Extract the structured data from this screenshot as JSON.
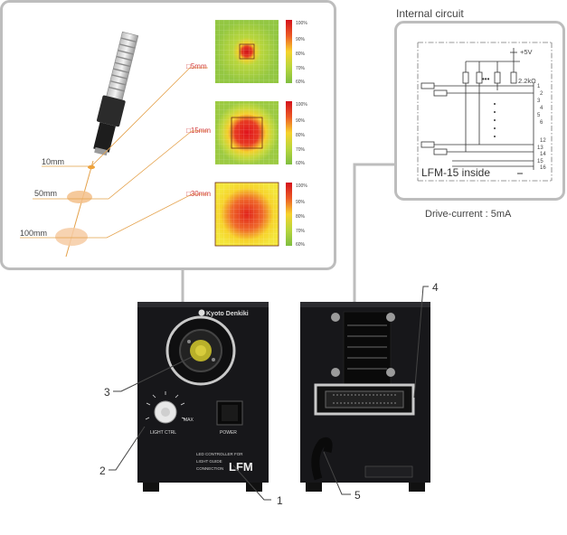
{
  "callout": {
    "distances": [
      "10mm",
      "50mm",
      "100mm"
    ],
    "spots": [
      {
        "label": "□5mm"
      },
      {
        "label": "□15mm"
      },
      {
        "label": "□30mm"
      }
    ],
    "scale_ticks": [
      "100%",
      "90%",
      "80%",
      "70%",
      "60%"
    ]
  },
  "circuit": {
    "title": "Internal circuit",
    "supply": "+5V",
    "resistor": "2.2kΩ",
    "ellipsis": "•••",
    "pins": [
      "1",
      "2",
      "3",
      "4",
      "5",
      "6",
      "12",
      "13",
      "14",
      "15",
      "16"
    ],
    "inside_label": "LFM-15 inside",
    "drive_current": "Drive-current : 5mA"
  },
  "front_panel": {
    "brand": "Kyoto Denkiki",
    "knob_label": "LIGHT CTRL",
    "knob_max": "MAX",
    "power_label": "POWER",
    "caption_lines": [
      "LED CONTROLLER FOR",
      "LIGHT GUIDE",
      "CONNECTION"
    ],
    "model": "LFM"
  },
  "callout_numbers": [
    "1",
    "2",
    "3",
    "4",
    "5"
  ]
}
